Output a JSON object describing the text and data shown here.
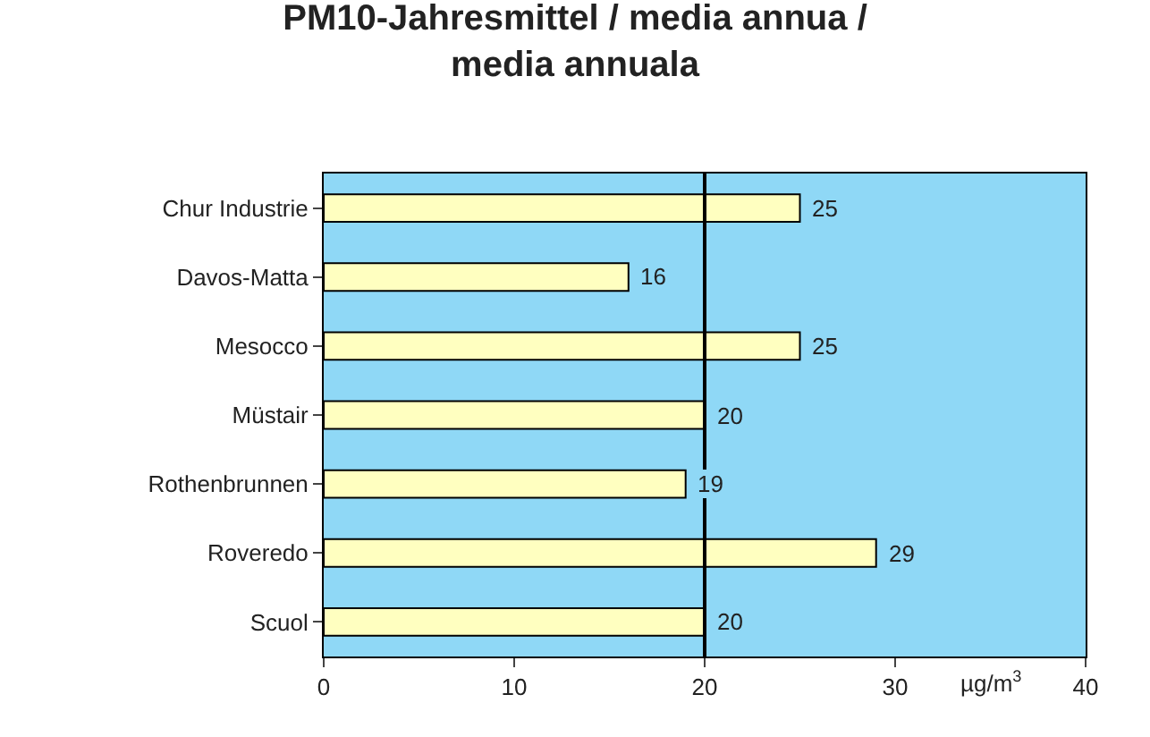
{
  "chart_data": {
    "type": "bar",
    "orientation": "horizontal",
    "title": "PM10-Jahresmittel / media annua /\nmedia annuala",
    "xlabel": "µg/m$^{3}$",
    "categories": [
      "Chur Industrie",
      "Davos-Matta",
      "Mesocco",
      "Müstair",
      "Rothenbrunnen",
      "Roveredo",
      "Scuol"
    ],
    "values": [
      25,
      16,
      25,
      20,
      19,
      29,
      20
    ],
    "color": "#ffffc0",
    "data_labels": true,
    "xlim": [
      0,
      40
    ],
    "xticks": [
      0,
      10,
      20,
      30,
      40
    ],
    "ref_lines": [
      {
        "axis": "x",
        "value": 20,
        "color": "#000000"
      }
    ]
  }
}
